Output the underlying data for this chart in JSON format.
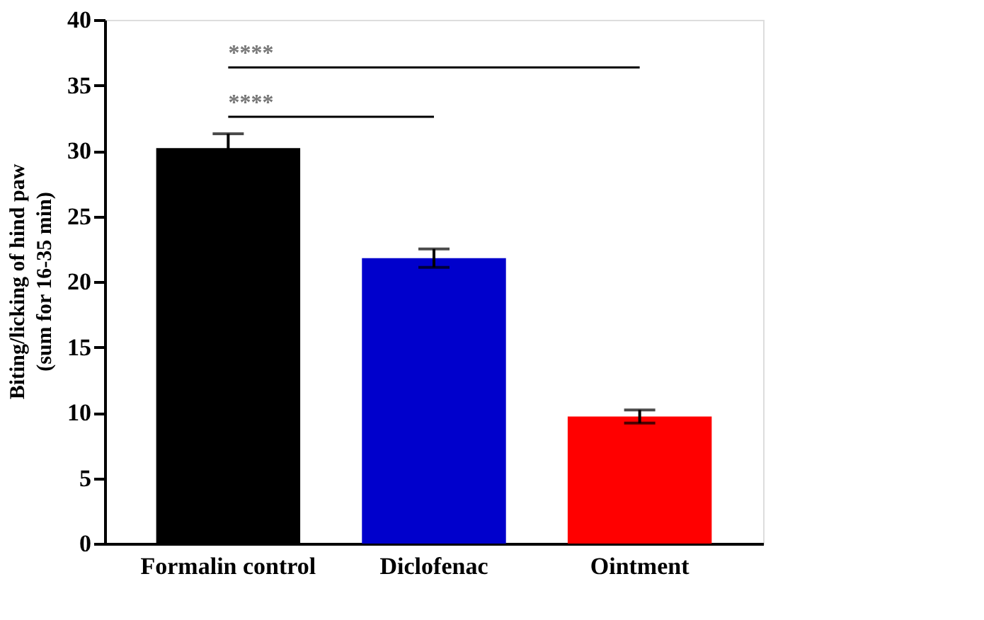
{
  "chart_data": {
    "type": "bar",
    "ylabel": "Biting/licking of hind paw\n(sum for 16-35 min)",
    "categories": [
      "Formalin control",
      "Diclofenac",
      "Ointment"
    ],
    "values": [
      30.2,
      21.8,
      9.7
    ],
    "errors": [
      1.1,
      0.7,
      0.5
    ],
    "colors": [
      "#000000",
      "#0000cc",
      "#ff0000"
    ],
    "ylim": [
      0,
      40
    ],
    "yticks": [
      0,
      5,
      10,
      15,
      20,
      25,
      30,
      35,
      40
    ],
    "grid": false,
    "annotations": [
      "****",
      "****"
    ]
  }
}
